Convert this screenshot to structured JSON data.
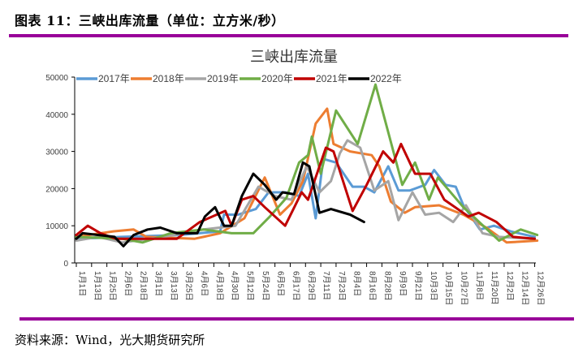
{
  "figure_title": "图表 11：三峡出库流量（单位：立方米/秒）",
  "source": "资料来源：Wind，光大期货研究所",
  "rule_color": "#990099",
  "chart_data": {
    "type": "line",
    "title": "三峡出库流量",
    "xlabel": "",
    "ylabel": "",
    "ylim": [
      0,
      50000
    ],
    "yticks": [
      "0",
      "10000",
      "20000",
      "30000",
      "40000",
      "50000"
    ],
    "xticks": [
      "1月1日",
      "1月13日",
      "1月25日",
      "2月6日",
      "2月18日",
      "3月1日",
      "3月13日",
      "3月25日",
      "4月6日",
      "4月18日",
      "4月30日",
      "5月12日",
      "5月24日",
      "6月5日",
      "6月17日",
      "6月29日",
      "7月11日",
      "7月23日",
      "8月4日",
      "8月16日",
      "8月28日",
      "9月9日",
      "9月21日",
      "10月3日",
      "10月15日",
      "10月27日",
      "11月8日",
      "11月20日",
      "12月2日",
      "12月14日",
      "12月26日"
    ],
    "grid": false,
    "legend": "top",
    "series": [
      {
        "name": "2017年",
        "color": "#5B9BD5",
        "points": [
          [
            "01-01",
            6500
          ],
          [
            "02-06",
            7000
          ],
          [
            "03-23",
            7500
          ],
          [
            "04-24",
            8500
          ],
          [
            "04-27",
            13000
          ],
          [
            "05-08",
            13000
          ],
          [
            "05-22",
            14500
          ],
          [
            "06-01",
            19000
          ],
          [
            "06-14",
            19000
          ],
          [
            "06-25",
            18000
          ],
          [
            "07-02",
            24000
          ],
          [
            "07-08",
            12000
          ],
          [
            "07-14",
            28000
          ],
          [
            "07-24",
            27000
          ],
          [
            "08-06",
            20500
          ],
          [
            "08-15",
            20500
          ],
          [
            "08-23",
            19000
          ],
          [
            "09-03",
            26000
          ],
          [
            "09-11",
            19500
          ],
          [
            "09-20",
            19500
          ],
          [
            "10-02",
            21000
          ],
          [
            "10-09",
            25000
          ],
          [
            "10-18",
            21000
          ],
          [
            "10-26",
            20500
          ],
          [
            "11-01",
            15500
          ],
          [
            "11-14",
            9000
          ],
          [
            "11-25",
            10000
          ],
          [
            "12-08",
            8500
          ],
          [
            "12-27",
            7000
          ]
        ]
      },
      {
        "name": "2018年",
        "color": "#ED7D31",
        "points": [
          [
            "01-01",
            7000
          ],
          [
            "01-30",
            8500
          ],
          [
            "02-15",
            9000
          ],
          [
            "02-25",
            7000
          ],
          [
            "04-04",
            6500
          ],
          [
            "04-24",
            8000
          ],
          [
            "05-13",
            12000
          ],
          [
            "05-29",
            23000
          ],
          [
            "06-10",
            13000
          ],
          [
            "06-19",
            16000
          ],
          [
            "06-28",
            22000
          ],
          [
            "07-08",
            37500
          ],
          [
            "07-17",
            41500
          ],
          [
            "07-22",
            32000
          ],
          [
            "08-04",
            30000
          ],
          [
            "08-21",
            29000
          ],
          [
            "08-27",
            26000
          ],
          [
            "09-05",
            16500
          ],
          [
            "09-16",
            13500
          ],
          [
            "09-24",
            15000
          ],
          [
            "10-13",
            15500
          ],
          [
            "11-01",
            13000
          ],
          [
            "11-19",
            9500
          ],
          [
            "12-05",
            5500
          ],
          [
            "12-29",
            6000
          ]
        ]
      },
      {
        "name": "2019年",
        "color": "#A5A5A5",
        "points": [
          [
            "01-01",
            6000
          ],
          [
            "01-18",
            7000
          ],
          [
            "02-06",
            5500
          ],
          [
            "03-10",
            7000
          ],
          [
            "04-11",
            9000
          ],
          [
            "05-06",
            10000
          ],
          [
            "05-24",
            20500
          ],
          [
            "06-06",
            18000
          ],
          [
            "06-19",
            17000
          ],
          [
            "07-01",
            26000
          ],
          [
            "07-11",
            19000
          ],
          [
            "07-20",
            22000
          ],
          [
            "07-27",
            29500
          ],
          [
            "08-02",
            33000
          ],
          [
            "08-12",
            31000
          ],
          [
            "08-23",
            19500
          ],
          [
            "09-03",
            22000
          ],
          [
            "09-11",
            11500
          ],
          [
            "09-22",
            19000
          ],
          [
            "10-02",
            13000
          ],
          [
            "10-13",
            13500
          ],
          [
            "10-24",
            11000
          ],
          [
            "11-03",
            15500
          ],
          [
            "11-16",
            8000
          ],
          [
            "11-29",
            7000
          ],
          [
            "12-27",
            6500
          ]
        ]
      },
      {
        "name": "2020年",
        "color": "#70AD47",
        "points": [
          [
            "01-01",
            7000
          ],
          [
            "02-06",
            6500
          ],
          [
            "02-22",
            5500
          ],
          [
            "03-16",
            8000
          ],
          [
            "04-11",
            9000
          ],
          [
            "05-03",
            8000
          ],
          [
            "05-20",
            8000
          ],
          [
            "06-02",
            12500
          ],
          [
            "06-15",
            17500
          ],
          [
            "06-25",
            27000
          ],
          [
            "07-02",
            29000
          ],
          [
            "07-05",
            34000
          ],
          [
            "07-12",
            24000
          ],
          [
            "07-24",
            41000
          ],
          [
            "08-10",
            32000
          ],
          [
            "08-24",
            48000
          ],
          [
            "09-14",
            21000
          ],
          [
            "09-24",
            27000
          ],
          [
            "10-05",
            17000
          ],
          [
            "10-12",
            23000
          ],
          [
            "11-01",
            15000
          ],
          [
            "11-29",
            6000
          ],
          [
            "12-16",
            9000
          ],
          [
            "12-29",
            7500
          ]
        ]
      },
      {
        "name": "2021年",
        "color": "#C00000",
        "points": [
          [
            "01-01",
            7500
          ],
          [
            "01-10",
            10000
          ],
          [
            "01-20",
            8000
          ],
          [
            "02-01",
            6500
          ],
          [
            "03-21",
            6500
          ],
          [
            "04-08",
            11000
          ],
          [
            "04-28",
            14000
          ],
          [
            "05-03",
            10000
          ],
          [
            "05-11",
            17000
          ],
          [
            "05-20",
            18000
          ],
          [
            "05-29",
            15000
          ],
          [
            "06-14",
            10000
          ],
          [
            "06-27",
            19000
          ],
          [
            "07-02",
            17000
          ],
          [
            "07-16",
            31000
          ],
          [
            "07-22",
            30000
          ],
          [
            "08-06",
            14000
          ],
          [
            "08-17",
            21000
          ],
          [
            "08-30",
            30000
          ],
          [
            "09-07",
            27000
          ],
          [
            "09-13",
            32000
          ],
          [
            "09-24",
            24000
          ],
          [
            "10-06",
            24000
          ],
          [
            "10-17",
            17000
          ],
          [
            "11-05",
            12500
          ],
          [
            "11-13",
            13500
          ],
          [
            "11-27",
            11000
          ],
          [
            "12-10",
            7000
          ],
          [
            "12-27",
            6500
          ]
        ]
      },
      {
        "name": "2022年",
        "color": "#000000",
        "points": [
          [
            "01-01",
            6500
          ],
          [
            "01-06",
            8000
          ],
          [
            "01-31",
            7000
          ],
          [
            "02-07",
            4500
          ],
          [
            "02-15",
            7500
          ],
          [
            "02-26",
            9000
          ],
          [
            "03-08",
            9500
          ],
          [
            "03-21",
            8000
          ],
          [
            "04-06",
            8000
          ],
          [
            "04-12",
            12500
          ],
          [
            "04-20",
            15000
          ],
          [
            "04-27",
            10000
          ],
          [
            "05-03",
            10000
          ],
          [
            "05-11",
            18000
          ],
          [
            "05-20",
            24000
          ],
          [
            "05-29",
            21000
          ],
          [
            "06-07",
            17000
          ],
          [
            "06-12",
            19000
          ],
          [
            "06-21",
            18500
          ],
          [
            "06-28",
            27000
          ],
          [
            "07-03",
            26000
          ],
          [
            "07-11",
            13500
          ],
          [
            "07-20",
            14500
          ],
          [
            "08-04",
            13000
          ],
          [
            "08-15",
            11000
          ]
        ]
      }
    ]
  }
}
